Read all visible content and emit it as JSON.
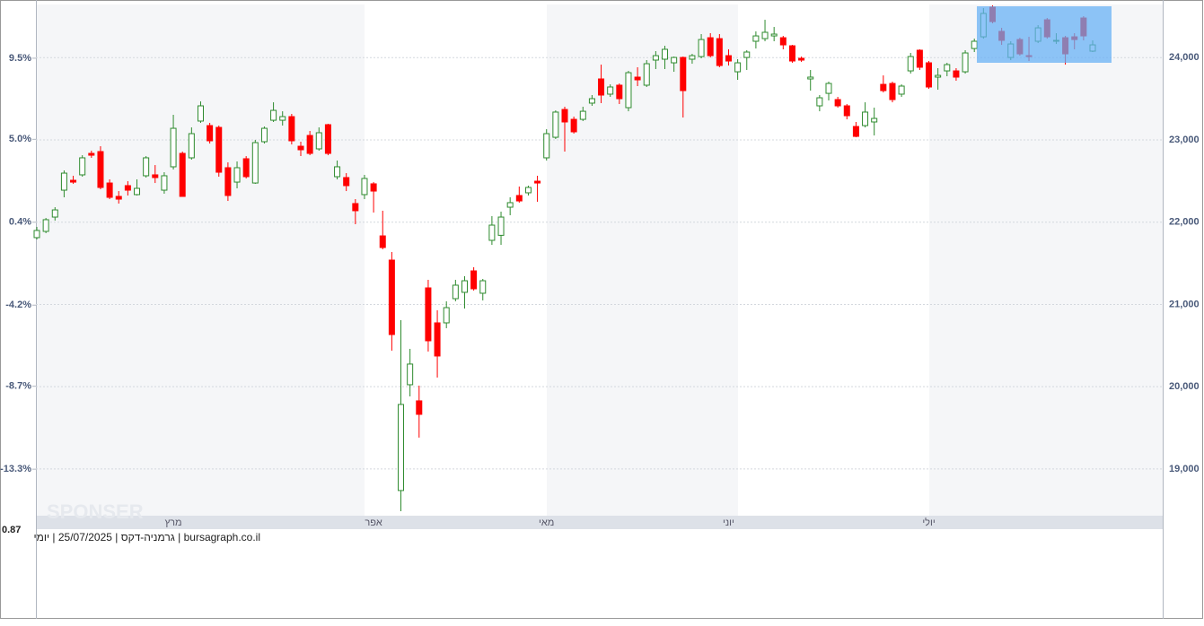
{
  "chart_data": {
    "type": "candlestick",
    "footer": "bursagraph.co.il | גרמניה-דקס | 25/07/2025 | יומי",
    "annotation": "0.87",
    "watermark": "SPONSER",
    "up_color": "#2e8b2e",
    "down_color": "#ff0000",
    "grid": true,
    "categories": [
      null,
      null,
      null,
      null,
      null,
      null,
      null,
      null,
      null,
      null,
      null,
      null,
      null,
      null,
      null,
      "מרץ",
      null,
      null,
      null,
      null,
      null,
      null,
      null,
      null,
      null,
      null,
      null,
      null,
      null,
      null,
      null,
      null,
      null,
      null,
      null,
      null,
      null,
      "אפר",
      null,
      null,
      null,
      null,
      null,
      null,
      null,
      null,
      null,
      null,
      null,
      null,
      null,
      null,
      null,
      null,
      null,
      null,
      "מאי",
      null,
      null,
      null,
      null,
      null,
      null,
      null,
      null,
      null,
      null,
      null,
      null,
      null,
      null,
      null,
      null,
      null,
      null,
      null,
      "יוני",
      null,
      null,
      null,
      null,
      null,
      null,
      null,
      null,
      null,
      null,
      null,
      null,
      null,
      null,
      null,
      null,
      null,
      null,
      null,
      null,
      null,
      "יולי",
      null,
      null,
      null,
      null,
      null,
      null,
      null,
      null,
      null,
      null,
      null,
      null,
      null,
      null,
      null,
      null,
      null,
      null
    ],
    "open": [
      21812,
      21888,
      22062,
      22389,
      22509,
      22575,
      22836,
      22858,
      22476,
      22313,
      22444,
      22335,
      22564,
      22575,
      22389,
      22673,
      22836,
      22782,
      23229,
      23174,
      23152,
      22662,
      22487,
      22771,
      22476,
      22978,
      23239,
      23239,
      23283,
      22923,
      23054,
      22891,
      23185,
      22553,
      22542,
      22226,
      22335,
      22466,
      21833,
      21539,
      18738,
      20024,
      19828,
      21201,
      20776,
      20776,
      21070,
      21147,
      21408,
      21136,
      21779,
      21840,
      22182,
      22324,
      22357,
      22498,
      22782,
      23032,
      23370,
      23250,
      23250,
      23447,
      23741,
      23556,
      23665,
      23392,
      23763,
      23665,
      23970,
      23981,
      23937,
      24002,
      23981,
      24013,
      24242,
      24231,
      24024,
      23828,
      24002,
      24199,
      24231,
      24264,
      24242,
      24144,
      23992,
      23741,
      23414,
      23566,
      23490,
      23414,
      23163,
      23174,
      23218,
      23675,
      23686,
      23556,
      23839,
      24090,
      23937,
      23763,
      23839,
      23839,
      23828,
      24111,
      24253,
      24613,
      24319,
      24002,
      24220,
      24024,
      24199,
      24460,
      24199,
      24242,
      24253,
      24482,
      24079
    ],
    "high": [
      21942,
      22051,
      22182,
      22629,
      22564,
      22814,
      22869,
      22923,
      22520,
      22378,
      22498,
      22520,
      22803,
      22694,
      22607,
      23305,
      22858,
      23152,
      23468,
      23207,
      23174,
      22727,
      22738,
      22803,
      23000,
      23163,
      23457,
      23348,
      23316,
      22978,
      23109,
      23152,
      23196,
      22749,
      22596,
      22280,
      22575,
      22487,
      22139,
      21637,
      20809,
      20460,
      20013,
      21299,
      20929,
      21038,
      21299,
      21343,
      21452,
      21310,
      22073,
      22128,
      22302,
      22433,
      22444,
      22564,
      23130,
      23359,
      23403,
      23283,
      23403,
      23545,
      23915,
      23675,
      23686,
      23839,
      23883,
      23970,
      24079,
      24144,
      24013,
      24013,
      24046,
      24286,
      24297,
      24286,
      24101,
      23981,
      24090,
      24319,
      24460,
      24373,
      24264,
      24155,
      24013,
      23850,
      23545,
      23708,
      23523,
      23436,
      23218,
      23457,
      23392,
      23784,
      23708,
      23675,
      24057,
      24101,
      23959,
      23872,
      23937,
      23872,
      24090,
      24231,
      24602,
      24635,
      24362,
      24199,
      24242,
      24253,
      24395,
      24482,
      24297,
      24264,
      24297,
      24504,
      24210
    ],
    "low": [
      21790,
      21866,
      22019,
      22302,
      22466,
      22553,
      22782,
      22400,
      22280,
      22226,
      22324,
      22324,
      22542,
      22476,
      22346,
      22640,
      22313,
      22760,
      23207,
      22956,
      22553,
      22258,
      22411,
      22531,
      22466,
      22956,
      23218,
      23174,
      22945,
      22803,
      22814,
      22869,
      22814,
      22520,
      22378,
      21975,
      22280,
      22117,
      21670,
      20438,
      18487,
      19882,
      19381,
      20427,
      20111,
      20711,
      21038,
      20950,
      21168,
      21049,
      21724,
      21724,
      22084,
      22237,
      22324,
      22248,
      22749,
      23011,
      22858,
      23076,
      23229,
      23414,
      23447,
      23523,
      23436,
      23348,
      23654,
      23643,
      23861,
      23861,
      23828,
      23272,
      23926,
      23992,
      24002,
      23883,
      23904,
      23730,
      23850,
      24111,
      24199,
      24199,
      24101,
      23937,
      23948,
      23599,
      23348,
      23479,
      23392,
      23250,
      23032,
      23152,
      23054,
      23577,
      23457,
      23523,
      23806,
      23850,
      23621,
      23610,
      23774,
      23719,
      23806,
      24068,
      24231,
      24417,
      24155,
      23970,
      24024,
      23959,
      24177,
      24231,
      24166,
      23915,
      24101,
      24210,
      24068
    ],
    "close": [
      21899,
      22030,
      22149,
      22596,
      22487,
      22782,
      22814,
      22422,
      22302,
      22280,
      22389,
      22411,
      22782,
      22542,
      22564,
      23141,
      22313,
      23076,
      23414,
      22989,
      22607,
      22324,
      22662,
      22553,
      22967,
      23141,
      23359,
      23283,
      22989,
      22880,
      22836,
      23087,
      22836,
      22673,
      22444,
      22139,
      22531,
      22378,
      21692,
      20634,
      19784,
      20275,
      19664,
      20558,
      20373,
      20961,
      21234,
      21288,
      21190,
      21288,
      21964,
      22062,
      22237,
      22258,
      22422,
      22476,
      23076,
      23338,
      23218,
      23098,
      23348,
      23501,
      23545,
      23643,
      23501,
      23817,
      23730,
      23926,
      24024,
      24101,
      24002,
      23599,
      24024,
      24220,
      24024,
      23904,
      23959,
      23937,
      24068,
      24264,
      24308,
      24286,
      24155,
      23959,
      23970,
      23763,
      23512,
      23686,
      23414,
      23294,
      23043,
      23338,
      23261,
      23599,
      23490,
      23654,
      24013,
      23883,
      23643,
      23784,
      23915,
      23763,
      24057,
      24199,
      24537,
      24438,
      24210,
      24166,
      24046,
      24013,
      24362,
      24253,
      24210,
      24046,
      24220,
      24264,
      24155
    ],
    "ylim": [
      18432,
      24646
    ],
    "yticks": [
      {
        "value": 19000,
        "label": "19,000"
      },
      {
        "value": 20000,
        "label": "20,000"
      },
      {
        "value": 21000,
        "label": "21,000"
      },
      {
        "value": 22000,
        "label": "22,000"
      },
      {
        "value": 23000,
        "label": "23,000"
      },
      {
        "value": 24000,
        "label": "24,000"
      }
    ],
    "y2lim": [
      -15.88,
      12.48
    ],
    "y2ticks": [
      {
        "value": -13.3,
        "label": "-13.3%"
      },
      {
        "value": -8.7,
        "label": "-8.7%"
      },
      {
        "value": -4.2,
        "label": "-4.2%"
      },
      {
        "value": 0.4,
        "label": "0.4%"
      },
      {
        "value": 5.0,
        "label": "5.0%"
      },
      {
        "value": 9.5,
        "label": "9.5%"
      }
    ]
  }
}
